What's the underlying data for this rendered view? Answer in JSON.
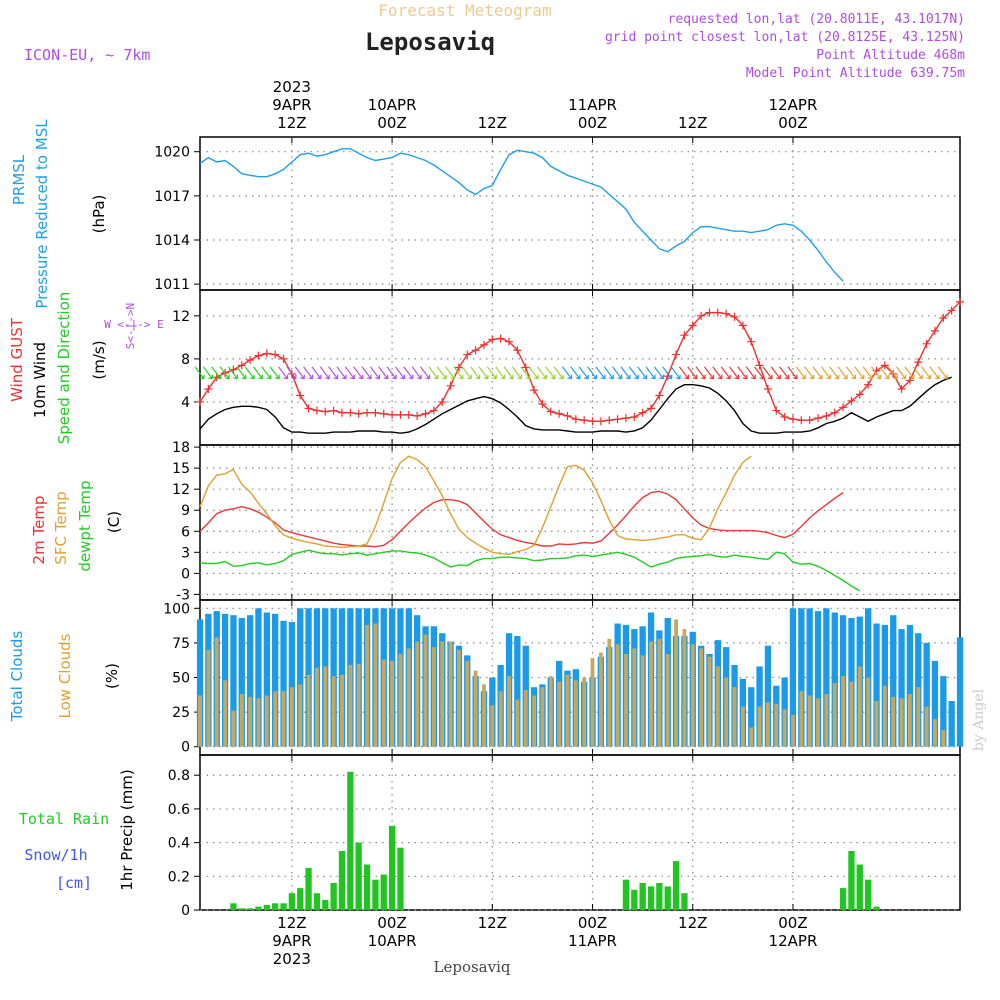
{
  "header": {
    "subtitle": "Forecast Meteogram",
    "title": "Leposaviq",
    "model": "ICON-EU, ~ 7km",
    "requested": "requested lon,lat (20.8011E, 43.1017N)",
    "grid_point": "grid point closest lon,lat (20.8125E, 43.125N)",
    "point_altitude": "Point Altitude 468m",
    "model_altitude": "Model Point Altitude 639.75m",
    "watermark": "by Angel",
    "footer_station": "Leposaviq"
  },
  "time_axis": {
    "top_labels": [
      {
        "hour": 12,
        "lines": [
          "2023",
          "9APR",
          "12Z"
        ]
      },
      {
        "hour": 24,
        "lines": [
          "10APR",
          "00Z"
        ]
      },
      {
        "hour": 36,
        "lines": [
          "12Z"
        ]
      },
      {
        "hour": 48,
        "lines": [
          "11APR",
          "00Z"
        ]
      },
      {
        "hour": 60,
        "lines": [
          "12Z"
        ]
      },
      {
        "hour": 72,
        "lines": [
          "12APR",
          "00Z"
        ]
      }
    ],
    "bottom_labels": [
      {
        "hour": 12,
        "lines": [
          "12Z",
          "9APR",
          "2023"
        ]
      },
      {
        "hour": 24,
        "lines": [
          "00Z",
          "10APR"
        ]
      },
      {
        "hour": 36,
        "lines": [
          "12Z"
        ]
      },
      {
        "hour": 48,
        "lines": [
          "00Z",
          "11APR"
        ]
      },
      {
        "hour": 60,
        "lines": [
          "12Z"
        ]
      },
      {
        "hour": 72,
        "lines": [
          "00Z",
          "12APR"
        ]
      }
    ]
  },
  "panel_labels": {
    "pressure": [
      "PRMSL",
      "Pressure Reduced to MSL",
      "(hPa)"
    ],
    "wind": [
      "Wind GUST",
      "10m Wind",
      "Speed and Direction",
      "(m/s)"
    ],
    "compass": {
      "n": "N",
      "s": "S",
      "e": "E",
      "w": "W",
      "row_we": "W <-|-> E",
      "row_ns": "S<-|->N"
    },
    "temp": [
      "2m Temp",
      "SFC Temp",
      "dewpt Temp",
      "(C)"
    ],
    "cloud": [
      "Total Clouds",
      "Low Clouds",
      "(%)"
    ],
    "precip": [
      "Total  Rain",
      "Snow/1h",
      "[cm]",
      "1hr Precip (mm)"
    ]
  },
  "colors": {
    "pressure": "#1ea0e6",
    "gust": "#ee3030",
    "wind": "#000000",
    "temp2m": "#e83838",
    "sfc": "#e0a030",
    "dew": "#22cc22",
    "total_cloud": "#1a9ae8",
    "low_cloud": "#c4a860",
    "rain": "#22c422",
    "snow": "#4455ee",
    "grid": "#888888",
    "model": "#b04ce0",
    "subtitle": "#f0c890"
  },
  "chart_data": [
    {
      "type": "line",
      "panel": "pressure",
      "ylabel": "(hPa)",
      "yticks": [
        1011,
        1014,
        1017,
        1020
      ],
      "ylim": [
        1010.6,
        1021.0
      ],
      "x_start_hour": 12,
      "x_step_hours": 1,
      "series": [
        {
          "name": "PRMSL",
          "values": [
            1019.2,
            1019.6,
            1019.3,
            1019.4,
            1019.0,
            1018.5,
            1018.4,
            1018.3,
            1018.3,
            1018.5,
            1018.8,
            1019.3,
            1019.8,
            1019.9,
            1019.7,
            1019.8,
            1020.0,
            1020.2,
            1020.2,
            1019.9,
            1019.6,
            1019.4,
            1019.5,
            1019.6,
            1019.9,
            1019.8,
            1019.6,
            1019.4,
            1019.1,
            1018.7,
            1018.3,
            1017.9,
            1017.4,
            1017.1,
            1017.5,
            1017.7,
            1018.8,
            1019.8,
            1020.1,
            1020.0,
            1019.9,
            1019.6,
            1019.0,
            1018.7,
            1018.4,
            1018.2,
            1018.0,
            1017.8,
            1017.6,
            1017.1,
            1016.6,
            1016.1,
            1015.2,
            1014.6,
            1014.0,
            1013.4,
            1013.2,
            1013.6,
            1013.9,
            1014.5,
            1014.9,
            1014.9,
            1014.8,
            1014.7,
            1014.6,
            1014.6,
            1014.5,
            1014.6,
            1014.7,
            1015.0,
            1015.1,
            1015.0,
            1014.6,
            1014.0,
            1013.3,
            1012.5,
            1011.8,
            1011.2
          ]
        }
      ]
    },
    {
      "type": "line",
      "panel": "wind",
      "ylabel": "(m/s)",
      "yticks": [
        4,
        8,
        12
      ],
      "ylim": [
        0,
        14.4
      ],
      "x_start_hour": 12,
      "x_step_hours": 1,
      "series": [
        {
          "name": "Wind GUST",
          "values": [
            4.0,
            5.2,
            6.3,
            6.7,
            7.0,
            7.4,
            7.9,
            8.3,
            8.5,
            8.4,
            8.0,
            6.6,
            4.6,
            3.4,
            3.2,
            3.1,
            3.2,
            3.0,
            3.0,
            2.9,
            3.0,
            3.0,
            2.9,
            2.8,
            2.8,
            2.8,
            2.7,
            2.9,
            3.2,
            4.0,
            5.5,
            7.2,
            8.4,
            8.8,
            9.3,
            9.8,
            9.9,
            9.6,
            8.8,
            7.2,
            5.1,
            3.8,
            3.1,
            2.9,
            2.7,
            2.4,
            2.3,
            2.2,
            2.2,
            2.3,
            2.4,
            2.5,
            2.6,
            3.0,
            3.4,
            4.6,
            6.4,
            8.4,
            10.2,
            11.1,
            12.0,
            12.3,
            12.3,
            12.2,
            11.9,
            11.1,
            9.6,
            7.4,
            5.2,
            3.2,
            2.6,
            2.4,
            2.3,
            2.3,
            2.5,
            2.7,
            3.0,
            3.5,
            4.1,
            4.7,
            5.6,
            6.9,
            7.4,
            6.6,
            5.2,
            6.0,
            7.7,
            9.4,
            10.6,
            11.8,
            12.5,
            13.3
          ]
        },
        {
          "name": "10m Wind",
          "values": [
            1.5,
            2.4,
            2.9,
            3.3,
            3.5,
            3.6,
            3.6,
            3.5,
            3.3,
            2.6,
            1.6,
            1.2,
            1.2,
            1.1,
            1.1,
            1.1,
            1.2,
            1.2,
            1.2,
            1.3,
            1.3,
            1.3,
            1.2,
            1.2,
            1.1,
            1.2,
            1.5,
            1.9,
            2.4,
            2.9,
            3.3,
            3.7,
            4.1,
            4.3,
            4.5,
            4.3,
            3.9,
            3.3,
            2.6,
            1.8,
            1.5,
            1.4,
            1.4,
            1.4,
            1.3,
            1.2,
            1.2,
            1.2,
            1.3,
            1.3,
            1.3,
            1.2,
            1.3,
            1.6,
            2.3,
            3.3,
            4.3,
            5.2,
            5.6,
            5.6,
            5.5,
            5.3,
            4.8,
            4.1,
            3.2,
            2.0,
            1.3,
            1.1,
            1.1,
            1.1,
            1.2,
            1.2,
            1.2,
            1.3,
            1.6,
            2.0,
            2.2,
            2.5,
            3.0,
            2.6,
            2.2,
            2.6,
            2.9,
            3.2,
            3.2,
            3.6,
            4.3,
            5.0,
            5.6,
            6.0,
            6.3
          ]
        }
      ]
    },
    {
      "type": "line",
      "panel": "temp",
      "ylabel": "(C)",
      "yticks": [
        -3,
        0,
        3,
        6,
        9,
        12,
        15,
        18
      ],
      "ylim": [
        -3.8,
        18.3
      ],
      "x_start_hour": 12,
      "x_step_hours": 1,
      "series": [
        {
          "name": "2m Temp",
          "values": [
            6.0,
            7.2,
            8.5,
            9.0,
            9.2,
            9.5,
            9.2,
            8.7,
            8.0,
            7.2,
            6.2,
            5.8,
            5.5,
            5.2,
            4.9,
            4.6,
            4.3,
            4.1,
            4.0,
            3.9,
            3.9,
            3.8,
            4.0,
            4.8,
            6.0,
            7.2,
            8.3,
            9.3,
            10.1,
            10.5,
            10.5,
            10.3,
            9.8,
            8.6,
            7.4,
            6.3,
            5.5,
            5.1,
            4.7,
            4.4,
            4.2,
            3.9,
            3.9,
            4.2,
            4.1,
            4.2,
            4.4,
            4.3,
            4.6,
            5.7,
            6.9,
            8.2,
            9.6,
            10.8,
            11.5,
            11.7,
            11.3,
            10.5,
            9.2,
            7.9,
            6.9,
            6.4,
            6.2,
            6.1,
            6.1,
            6.1,
            6.1,
            6.0,
            5.8,
            5.4,
            5.1,
            5.6,
            6.7,
            7.9,
            8.9,
            9.8,
            10.7,
            11.5
          ]
        },
        {
          "name": "SFC Temp",
          "values": [
            9.5,
            12.5,
            14.0,
            14.2,
            14.8,
            12.7,
            11.6,
            10.0,
            8.5,
            6.8,
            5.5,
            5.0,
            4.7,
            4.4,
            4.2,
            3.9,
            3.8,
            3.7,
            3.8,
            3.9,
            4.2,
            6.7,
            10.0,
            13.5,
            15.8,
            16.7,
            16.2,
            15.2,
            13.2,
            11.1,
            8.5,
            6.3,
            5.1,
            4.3,
            3.6,
            3.0,
            2.8,
            2.7,
            3.1,
            3.4,
            4.0,
            6.5,
            9.5,
            12.5,
            15.2,
            15.4,
            14.7,
            12.9,
            10.4,
            7.6,
            5.4,
            4.9,
            4.8,
            4.7,
            4.8,
            5.0,
            5.2,
            5.5,
            5.5,
            5.0,
            4.8,
            6.5,
            9.2,
            11.5,
            14.0,
            15.8,
            16.7
          ]
        },
        {
          "name": "dewpt Temp",
          "values": [
            1.5,
            1.4,
            1.4,
            1.7,
            1.0,
            1.1,
            1.4,
            1.5,
            1.2,
            1.4,
            1.8,
            2.7,
            3.0,
            3.3,
            3.0,
            2.8,
            2.8,
            2.6,
            2.8,
            2.9,
            2.6,
            2.8,
            3.0,
            3.2,
            3.2,
            3.0,
            2.9,
            2.6,
            2.2,
            1.5,
            0.9,
            1.2,
            1.1,
            1.8,
            2.1,
            2.1,
            2.3,
            2.3,
            2.2,
            2.1,
            1.8,
            1.9,
            2.1,
            2.1,
            2.2,
            2.5,
            2.6,
            2.4,
            2.6,
            2.8,
            3.0,
            2.7,
            2.3,
            1.6,
            0.9,
            1.3,
            1.6,
            2.1,
            2.3,
            2.4,
            2.5,
            2.7,
            2.4,
            2.3,
            2.6,
            2.4,
            2.3,
            2.1,
            2.0,
            3.0,
            2.8,
            1.6,
            1.3,
            1.4,
            1.0,
            0.4,
            -0.3,
            -1.0,
            -1.8,
            -2.5
          ]
        }
      ]
    },
    {
      "type": "bar",
      "panel": "cloud",
      "ylabel": "(%)",
      "yticks": [
        0,
        25,
        50,
        75,
        100
      ],
      "ylim": [
        -6,
        106
      ],
      "x_start_hour": 12,
      "x_step_hours": 1,
      "series": [
        {
          "name": "Total Clouds",
          "values": [
            92,
            96,
            98,
            96,
            95,
            93,
            95,
            100,
            97,
            96,
            91,
            90,
            100,
            100,
            100,
            100,
            100,
            100,
            100,
            100,
            100,
            100,
            100,
            100,
            100,
            100,
            95,
            87,
            87,
            82,
            76,
            73,
            66,
            51,
            40,
            50,
            59,
            82,
            80,
            73,
            43,
            45,
            50,
            62,
            55,
            56,
            47,
            50,
            65,
            72,
            89,
            88,
            85,
            87,
            97,
            84,
            93,
            80,
            80,
            83,
            73,
            67,
            77,
            72,
            59,
            49,
            43,
            58,
            73,
            44,
            50,
            100,
            100,
            100,
            98,
            100,
            97,
            95,
            93,
            94,
            100,
            89,
            88,
            95,
            85,
            88,
            82,
            75,
            62,
            51,
            33,
            79
          ]
        },
        {
          "name": "Low Clouds",
          "values": [
            37,
            70,
            79,
            48,
            26,
            38,
            36,
            35,
            37,
            40,
            40,
            43,
            45,
            52,
            57,
            58,
            51,
            52,
            59,
            60,
            88,
            89,
            63,
            62,
            67,
            71,
            76,
            81,
            72,
            76,
            76,
            70,
            62,
            55,
            45,
            30,
            40,
            51,
            34,
            41,
            37,
            43,
            51,
            47,
            52,
            48,
            50,
            64,
            68,
            78,
            74,
            67,
            71,
            66,
            76,
            78,
            67,
            92,
            85,
            74,
            71,
            65,
            58,
            50,
            43,
            29,
            14,
            29,
            32,
            31,
            27,
            23,
            40,
            37,
            35,
            38,
            46,
            51,
            47,
            58,
            50,
            33,
            44,
            36,
            35,
            38,
            43,
            29,
            20,
            12
          ]
        }
      ]
    },
    {
      "type": "bar",
      "panel": "precip",
      "ylabel": "1hr Precip (mm)",
      "yticks": [
        0,
        0.2,
        0.4,
        0.6,
        0.8
      ],
      "ylim": [
        0,
        0.92
      ],
      "x_start_hour": 12,
      "x_step_hours": 1,
      "series": [
        {
          "name": "Total Rain",
          "values": [
            0,
            0,
            0,
            0,
            0.04,
            0.01,
            0.01,
            0.02,
            0.03,
            0.04,
            0.04,
            0.1,
            0.13,
            0.25,
            0.1,
            0.06,
            0.16,
            0.35,
            0.82,
            0.4,
            0.27,
            0.18,
            0.21,
            0.5,
            0.37,
            0,
            0,
            0,
            0,
            0,
            0,
            0,
            0,
            0,
            0,
            0,
            0,
            0,
            0,
            0,
            0,
            0,
            0,
            0,
            0,
            0,
            0,
            0,
            0,
            0,
            0,
            0.18,
            0.12,
            0.16,
            0.14,
            0.16,
            0.14,
            0.29,
            0.1,
            0,
            0,
            0,
            0,
            0,
            0,
            0,
            0,
            0,
            0,
            0,
            0,
            0,
            0,
            0,
            0,
            0,
            0,
            0.13,
            0.35,
            0.27,
            0.18,
            0.02
          ]
        },
        {
          "name": "Snow/1h",
          "values": [
            0
          ]
        }
      ]
    }
  ]
}
